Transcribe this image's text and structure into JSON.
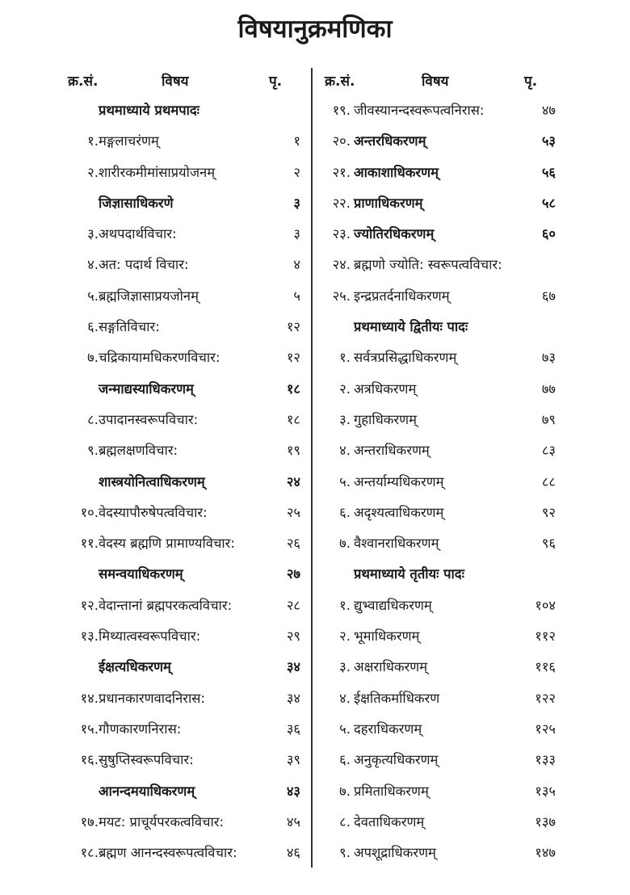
{
  "title": "विषयानुक्रमणिका",
  "headers": {
    "num": "क्र.सं.",
    "subject": "विषय",
    "page": "पृ."
  },
  "left": [
    {
      "num": "",
      "text": "प्रथमाध्याये प्रथमपादः",
      "page": "",
      "bold": true
    },
    {
      "num": "१.",
      "text": "मङ्गलाचरंणम्",
      "page": "१"
    },
    {
      "num": "२.",
      "text": "शारीरकमीमांसाप्रयोजनम्",
      "page": "२"
    },
    {
      "num": "",
      "text": "जिज्ञासाधिकरणे",
      "page": "३",
      "bold": true
    },
    {
      "num": "३.",
      "text": "अथपदार्थविचार:",
      "page": "३"
    },
    {
      "num": "४.",
      "text": "अत: पदार्थ विचार:",
      "page": "४"
    },
    {
      "num": "५.",
      "text": "ब्रह्मजिज्ञासाप्रयजोनम्",
      "page": "५"
    },
    {
      "num": "६.",
      "text": "सङ्गतिविचार:",
      "page": "१२"
    },
    {
      "num": "७.",
      "text": "चद्रिकायामधिकरणविचार:",
      "page": "१२"
    },
    {
      "num": "",
      "text": "जन्माद्यस्याधिकरणम्",
      "page": "१८",
      "bold": true
    },
    {
      "num": "८.",
      "text": "उपादानस्वरूपविचार:",
      "page": "१८"
    },
    {
      "num": "९.",
      "text": "ब्रह्मलक्षणविचार:",
      "page": "१९"
    },
    {
      "num": "",
      "text": "शास्त्रयोनित्वाधिकरणम्",
      "page": "२४",
      "bold": true
    },
    {
      "num": "१०.",
      "text": "वेदस्यापौरुषेपत्वविचार:",
      "page": "२५"
    },
    {
      "num": "११.",
      "text": "वेदस्य ब्रह्मणि प्रामाण्यविचार:",
      "page": "२६"
    },
    {
      "num": "",
      "text": "समन्वयाधिकरणम्",
      "page": "२७",
      "bold": true
    },
    {
      "num": "१२.",
      "text": "वेदान्तानां ब्रह्मपरकत्वविचार:",
      "page": "२८"
    },
    {
      "num": "१३.",
      "text": "मिथ्यात्वस्वरूपविचार:",
      "page": "२९"
    },
    {
      "num": "",
      "text": "ईक्षत्यधिकरणम्",
      "page": "३४",
      "bold": true
    },
    {
      "num": "१४.",
      "text": "प्रधानकारणवादनिरास:",
      "page": "३४"
    },
    {
      "num": "१५.",
      "text": "गौणकारणनिरास:",
      "page": "३६"
    },
    {
      "num": "१६.",
      "text": "सुषुप्तिस्वरूपविचार:",
      "page": "३९"
    },
    {
      "num": "",
      "text": "आनन्दमयाधिकरणम्",
      "page": "४३",
      "bold": true
    },
    {
      "num": "१७.",
      "text": "मयट: प्राचूर्यपरकत्वविचार:",
      "page": "४५"
    },
    {
      "num": "१८.",
      "text": "ब्रह्मण आनन्दस्वरूपत्वविचार:",
      "page": "४६"
    }
  ],
  "right": [
    {
      "num": "१९.",
      "text": "जीवस्यानन्दस्वरूपत्वनिरास:",
      "page": "४७"
    },
    {
      "num": "२०.",
      "text": "अन्तरधिकरणम्",
      "page": "५३",
      "bold": true
    },
    {
      "num": "२१.",
      "text": "आकाशाधिकरणम्",
      "page": "५६",
      "bold": true
    },
    {
      "num": "२२.",
      "text": "प्राणाधिकरणम्",
      "page": "५८",
      "bold": true
    },
    {
      "num": "२३.",
      "text": "ज्योतिरधिकरणम्",
      "page": "६०",
      "bold": true
    },
    {
      "num": "२४.",
      "text": "ब्रह्मणो ज्योति: स्वरूपत्वविचार:",
      "page": ""
    },
    {
      "num": "२५.",
      "text": "इन्द्रप्रतर्दनाधिकरणम्",
      "page": "६७"
    },
    {
      "num": "",
      "text": "प्रथमाध्याये द्वितीयः पादः",
      "page": "",
      "bold": true
    },
    {
      "num": "१.",
      "text": "सर्वत्रप्रसिद्धाधिकरणम्",
      "page": "७३"
    },
    {
      "num": "२.",
      "text": "अत्रधिकरणम्",
      "page": "७७"
    },
    {
      "num": "३.",
      "text": "गुहाधिकरणम्",
      "page": "७९"
    },
    {
      "num": "४.",
      "text": "अन्तराधिकरणम्",
      "page": "८३"
    },
    {
      "num": "५.",
      "text": "अन्तर्याम्यधिकरणम्",
      "page": "८८"
    },
    {
      "num": "६.",
      "text": "अदृश्यत्वाधिकरणम्",
      "page": "९२"
    },
    {
      "num": "७.",
      "text": "वैश्वानराधिकरणम्",
      "page": "९६"
    },
    {
      "num": "",
      "text": "प्रथमाध्याये तृतीयः पादः",
      "page": "",
      "bold": true
    },
    {
      "num": "१.",
      "text": "द्युभ्वाद्यधिकरणम्",
      "page": "१०४"
    },
    {
      "num": "२.",
      "text": "भूमाधिकरणम्",
      "page": "११२"
    },
    {
      "num": "३.",
      "text": "अक्षराधिकरणम्",
      "page": "११६"
    },
    {
      "num": "४.",
      "text": "ईक्षतिकर्माधिकरण",
      "page": "१२२"
    },
    {
      "num": "५.",
      "text": "दहराधिकरणम्",
      "page": "१२५"
    },
    {
      "num": "६.",
      "text": "अनुकृत्यधिकरणम्",
      "page": "१३३"
    },
    {
      "num": "७.",
      "text": "प्रमिताधिकरणम्",
      "page": "१३५"
    },
    {
      "num": "८.",
      "text": "देवताधिकरणम्",
      "page": "१३७"
    },
    {
      "num": "९.",
      "text": "अपशूद्राधिकरणम्",
      "page": "१४७"
    }
  ]
}
